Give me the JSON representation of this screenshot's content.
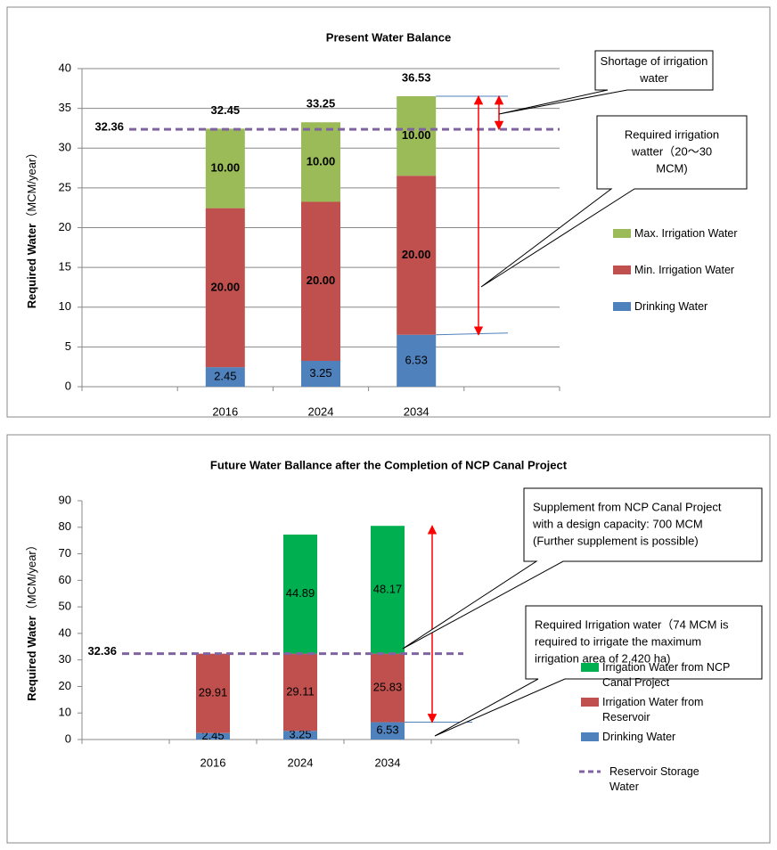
{
  "chart_data": [
    {
      "type": "bar",
      "stacked": true,
      "title": "Present Water Balance",
      "ylabel": "Required Water",
      "ylabel_unit": "（MCM/year）",
      "categories": [
        null,
        "2016",
        "2024",
        "2034",
        null
      ],
      "series": [
        {
          "name": "Drinking Water",
          "color": "#4f81bd",
          "values": [
            null,
            2.45,
            3.25,
            6.53,
            null
          ],
          "label_weight": "normal"
        },
        {
          "name": "Min. Irrigation Water",
          "color": "#c0504d",
          "values": [
            null,
            20,
            20,
            20,
            null
          ],
          "value_labels": [
            null,
            "20.00",
            "20.00",
            "20.00",
            null
          ],
          "label_weight": "bold"
        },
        {
          "name": "Max. Irrigation Water",
          "color": "#9bbb59",
          "values": [
            null,
            10,
            10,
            10,
            null
          ],
          "value_labels": [
            null,
            "10.00",
            "10.00",
            "10.00",
            null
          ],
          "label_weight": "bold"
        }
      ],
      "totals": [
        null,
        32.45,
        33.25,
        36.53,
        null
      ],
      "reference_line": {
        "value": 32.36,
        "color": "#8064a2"
      },
      "ylim": [
        0,
        40
      ],
      "yticks": [
        0,
        5,
        10,
        15,
        20,
        25,
        30,
        35,
        40
      ],
      "grid": true,
      "legend": "right",
      "annotations": [
        {
          "lines": [
            "Shortage of irrigation",
            "water"
          ]
        },
        {
          "lines": [
            "Required irrigation",
            "watter（20〜30",
            "MCM)"
          ]
        }
      ]
    },
    {
      "type": "bar",
      "stacked": true,
      "title": "Future Water Ballance after the Completion of NCP Canal Project",
      "ylabel": "Required Water",
      "ylabel_unit": "（MCM/year）",
      "categories": [
        null,
        "2016",
        "2024",
        "2034",
        null
      ],
      "series": [
        {
          "name": "Drinking Water",
          "color": "#4f81bd",
          "values": [
            null,
            2.45,
            3.25,
            6.53,
            null
          ],
          "label_weight": "normal"
        },
        {
          "name": "Irrigation Water from Reservoir",
          "color": "#c0504d",
          "values": [
            null,
            29.91,
            29.11,
            25.83,
            null
          ],
          "label_weight": "normal"
        },
        {
          "name": "Irrigation Water from NCP Canal Project",
          "color": "#00b050",
          "values": [
            null,
            null,
            44.89,
            48.17,
            null
          ],
          "label_weight": "normal"
        }
      ],
      "reference_line": {
        "value": 32.36,
        "color": "#8064a2",
        "name": "Reservoir Storage Water"
      },
      "ylim": [
        0,
        90
      ],
      "yticks": [
        0,
        10,
        20,
        30,
        40,
        50,
        60,
        70,
        80,
        90
      ],
      "grid": false,
      "legend": "right",
      "annotations": [
        {
          "lines": [
            "Supplement from NCP Canal Project",
            "with a design capacity: 700 MCM",
            "(Further supplement is possible)"
          ]
        },
        {
          "lines": [
            "Required Irrigation water（74 MCM is",
            "required to irrigate the maximum",
            "irrigation area of 2,420 ha)"
          ]
        }
      ]
    }
  ]
}
